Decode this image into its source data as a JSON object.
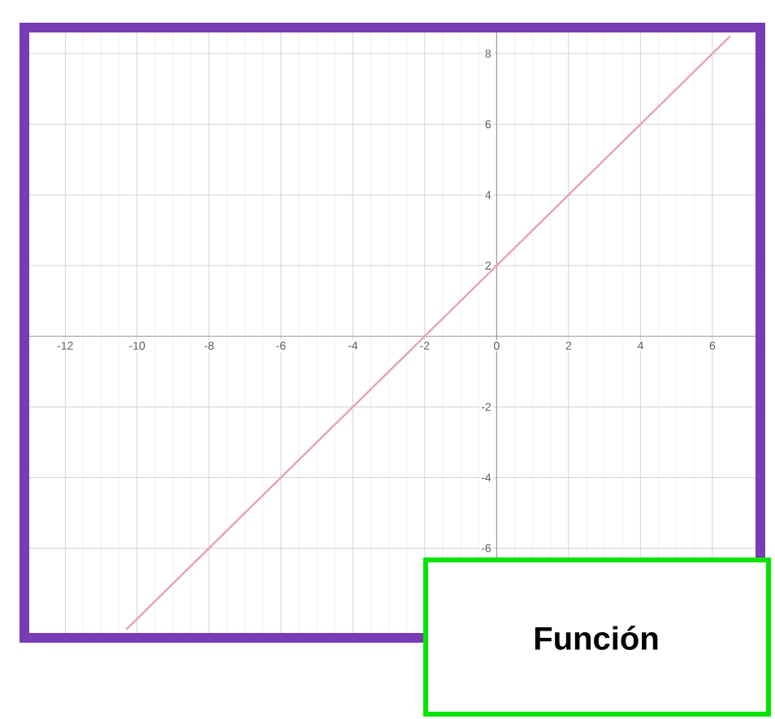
{
  "chart_data": {
    "type": "line",
    "x": [
      -10.3,
      6.5
    ],
    "series": [
      {
        "color": "#e8a0b8",
        "values": [
          -8.3,
          8.5
        ]
      }
    ],
    "xlim": [
      -13,
      7.2
    ],
    "ylim": [
      -8.4,
      8.6
    ],
    "xticks": [
      -12,
      -10,
      -8,
      -6,
      -4,
      -2,
      0,
      2,
      4,
      6
    ],
    "yticks": [
      -6,
      -4,
      -2,
      2,
      4,
      6,
      8
    ],
    "grid": true,
    "marker": "none",
    "line_style": "solid",
    "annotations": [
      "Función"
    ]
  }
}
